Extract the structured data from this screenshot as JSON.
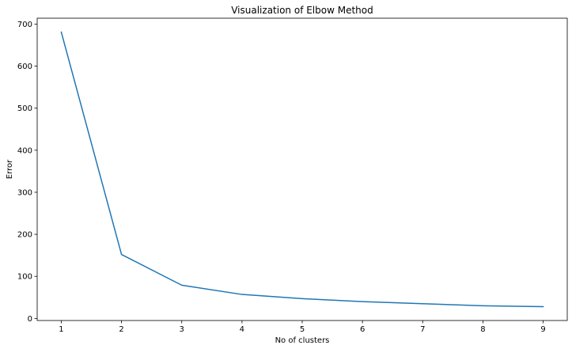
{
  "chart_data": {
    "type": "line",
    "title": "Visualization of Elbow Method",
    "xlabel": "No of clusters",
    "ylabel": "Error",
    "x": [
      1,
      2,
      3,
      4,
      5,
      6,
      7,
      8,
      9
    ],
    "series": [
      {
        "values": [
          681,
          152,
          79,
          57,
          47,
          40,
          35,
          30,
          28
        ],
        "color": "#1f77b4"
      }
    ],
    "xticks": [
      1,
      2,
      3,
      4,
      5,
      6,
      7,
      8,
      9
    ],
    "yticks": [
      0,
      100,
      200,
      300,
      400,
      500,
      600,
      700
    ],
    "xlim": [
      0.6,
      9.4
    ],
    "ylim": [
      -5,
      714
    ],
    "grid": false,
    "legend": "none"
  }
}
